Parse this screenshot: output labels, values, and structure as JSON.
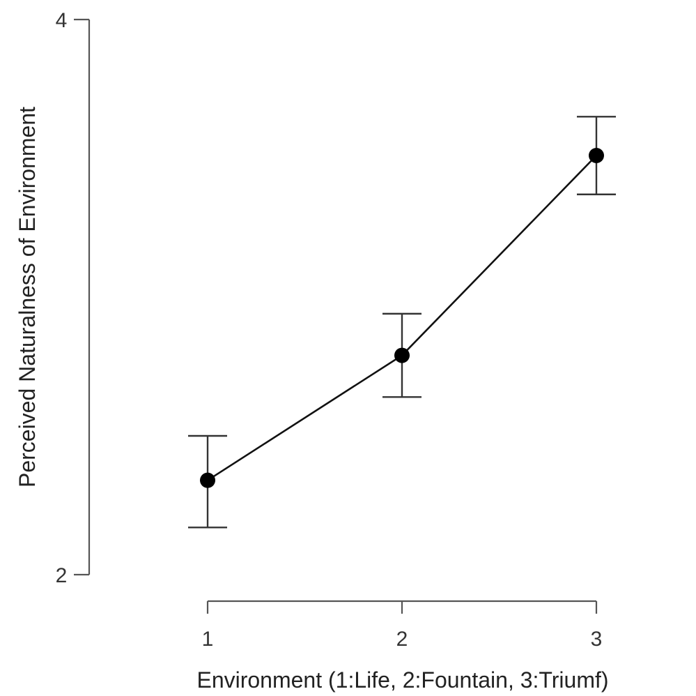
{
  "chart_data": {
    "type": "line",
    "title": "",
    "xlabel": "Environment (1:Life, 2:Fountain, 3:Triumf)",
    "ylabel": "Perceived Naturalness of  Environment",
    "x": [
      1,
      2,
      3
    ],
    "x_ticks": [
      "1",
      "2",
      "3"
    ],
    "y_ticks": [
      "2",
      "4"
    ],
    "xlim": [
      1,
      3
    ],
    "ylim": [
      2,
      4
    ],
    "grid": false,
    "series": [
      {
        "values": [
          2.34,
          2.79,
          3.51
        ],
        "error_low": [
          2.17,
          2.64,
          3.37
        ],
        "error_high": [
          2.5,
          2.94,
          3.65
        ]
      }
    ],
    "colors": {
      "line": "#111111",
      "marker": "#000000",
      "axis": "#555555"
    }
  }
}
